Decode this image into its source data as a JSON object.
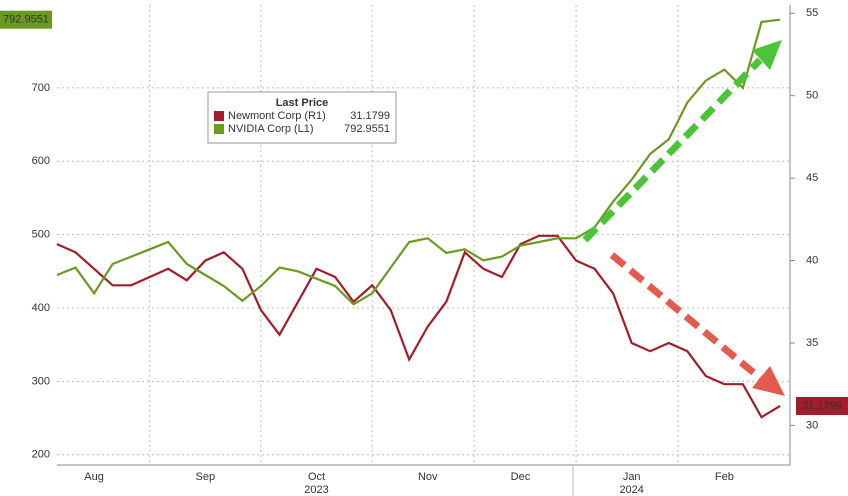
{
  "chart_data": {
    "type": "line",
    "categories": [
      null,
      null,
      "Aug",
      null,
      null,
      null,
      null,
      null,
      "Sep",
      null,
      null,
      null,
      null,
      null,
      "Oct",
      null,
      null,
      null,
      null,
      null,
      "Nov",
      null,
      null,
      null,
      null,
      "Dec",
      null,
      null,
      null,
      null,
      null,
      "Jan",
      null,
      null,
      null,
      null,
      "Feb",
      null,
      null,
      null
    ],
    "years": [
      null,
      null,
      null,
      null,
      null,
      null,
      null,
      null,
      null,
      null,
      null,
      null,
      null,
      null,
      "2023",
      null,
      null,
      null,
      null,
      null,
      null,
      null,
      null,
      null,
      null,
      null,
      null,
      null,
      null,
      null,
      null,
      "2024",
      null,
      null,
      null,
      null,
      null,
      null,
      null,
      null
    ],
    "legend_title": "Last Price",
    "series": [
      {
        "name": "Newmont Corp (R1)",
        "color": "#a31c2a",
        "axis": "y2",
        "values": [
          41,
          40.5,
          39.5,
          38.5,
          38.5,
          39,
          39.5,
          38.8,
          40,
          40.5,
          39.5,
          37,
          35.5,
          37.5,
          39.5,
          39,
          37.5,
          38.5,
          37,
          34,
          36,
          37.5,
          40.5,
          39.5,
          39,
          41,
          41.5,
          41.5,
          40,
          39.5,
          38,
          35,
          34.5,
          35,
          34.5,
          33,
          32.5,
          32.5,
          30.5,
          31.1799
        ]
      },
      {
        "name": "NVIDIA Corp (L1)",
        "color": "#6a9a1f",
        "axis": "y",
        "values": [
          445,
          455,
          420,
          460,
          470,
          480,
          490,
          460,
          445,
          430,
          410,
          430,
          455,
          450,
          440,
          430,
          405,
          420,
          455,
          490,
          495,
          475,
          480,
          465,
          470,
          485,
          490,
          495,
          495,
          510,
          545,
          575,
          610,
          630,
          680,
          710,
          725,
          700,
          790,
          792.9551
        ]
      }
    ],
    "ylim": [
      186,
      813
    ],
    "yticks": [
      200,
      300,
      400,
      500,
      600,
      700
    ],
    "y2lim": [
      27.6,
      55.5
    ],
    "y2ticks": [
      30,
      35,
      40,
      45,
      50,
      55
    ],
    "grid": true
  }
}
